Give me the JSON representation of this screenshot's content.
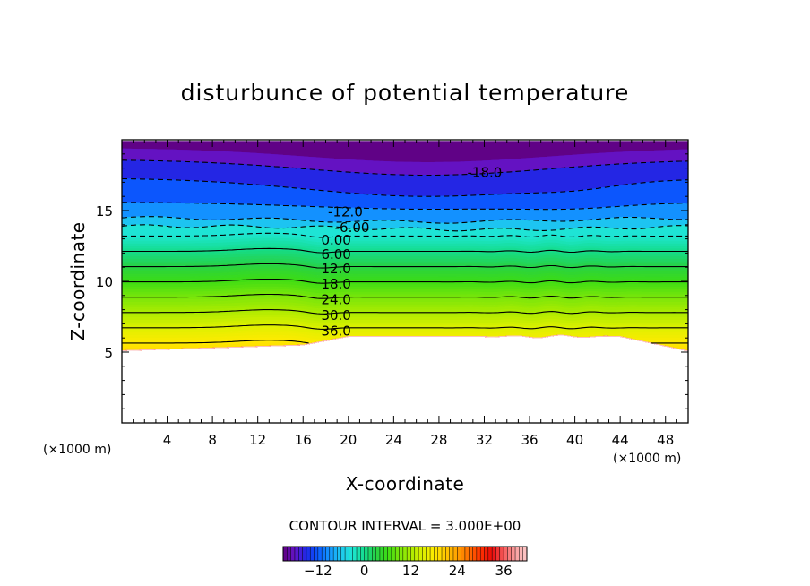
{
  "chart_data": {
    "type": "contour",
    "title": "disturbunce of potential temperature",
    "xlabel": "X-coordinate",
    "ylabel": "Z-coordinate",
    "x_unit": "(×1000 m)",
    "xlim": [
      0,
      50
    ],
    "ylim": [
      0,
      20
    ],
    "x_ticks": [
      4,
      8,
      12,
      16,
      20,
      24,
      28,
      32,
      36,
      40,
      44,
      48
    ],
    "y_ticks": [
      5,
      10,
      15
    ],
    "contour_interval_text": "CONTOUR INTERVAL = 3.000E+00",
    "contour_interval": 3,
    "contour_labels": [
      {
        "text": "-18.0",
        "x": 30.5,
        "z": 17.7
      },
      {
        "text": "-12.0",
        "x": 18.2,
        "z": 14.9
      },
      {
        "text": "-6.00",
        "x": 18.8,
        "z": 13.8
      },
      {
        "text": "0.00",
        "x": 17.6,
        "z": 12.9
      },
      {
        "text": "6.00",
        "x": 17.6,
        "z": 11.9
      },
      {
        "text": "12.0",
        "x": 17.6,
        "z": 10.9
      },
      {
        "text": "18.0",
        "x": 17.6,
        "z": 9.8
      },
      {
        "text": "24.0",
        "x": 17.6,
        "z": 8.7
      },
      {
        "text": "30.0",
        "x": 17.6,
        "z": 7.6
      },
      {
        "text": "36.0",
        "x": 17.6,
        "z": 6.5
      }
    ],
    "value_range": [
      -21,
      42
    ],
    "colorbar_ticks": [
      -12,
      0,
      12,
      24,
      36
    ]
  }
}
